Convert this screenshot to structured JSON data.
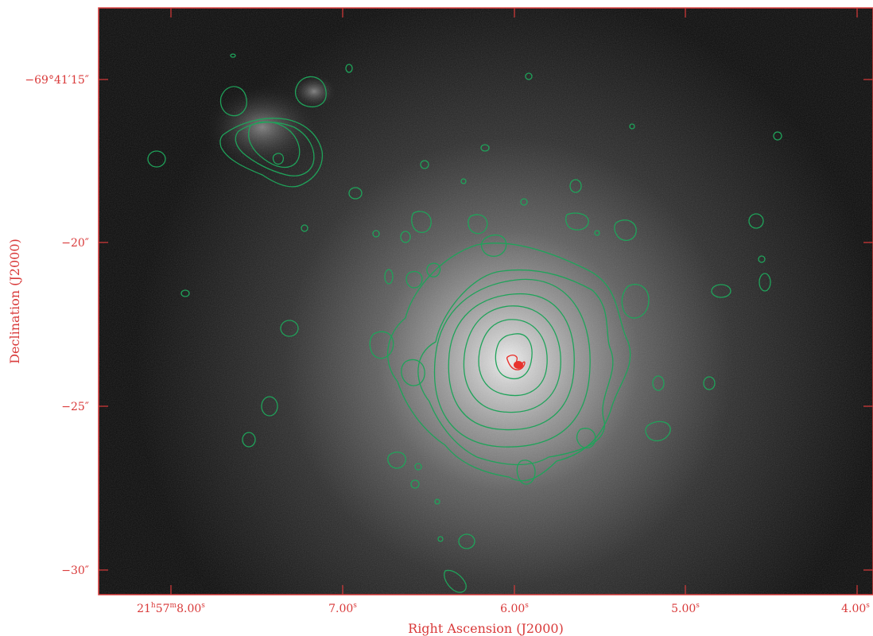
{
  "colors": {
    "frame": "#d93a3a",
    "contour": "#1fa35a",
    "contour_peak": "#e8332e",
    "background": "#0c0c0c"
  },
  "axes": {
    "xlabel": "Right Ascension (J2000)",
    "ylabel": "Declination (J2000)",
    "xticks": [
      {
        "h": "21",
        "m": "57",
        "s": "8.00",
        "full": true
      },
      {
        "s": "7.00"
      },
      {
        "s": "6.00"
      },
      {
        "s": "5.00"
      },
      {
        "s": "4.00"
      }
    ],
    "yticks": [
      "−69°41′15″",
      "−20″",
      "−25″",
      "−30″"
    ]
  }
}
